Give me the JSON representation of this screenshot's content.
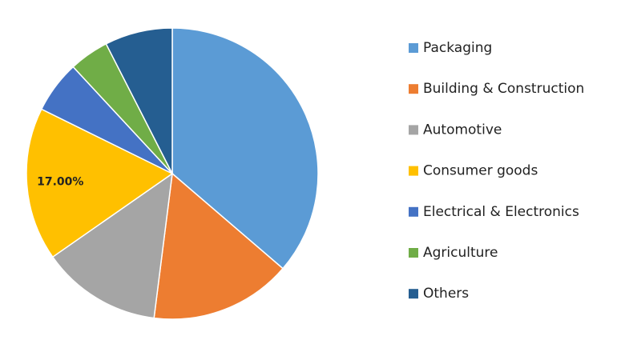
{
  "chart_data": {
    "type": "pie",
    "categories": [
      "Packaging",
      "Building & Construction",
      "Automotive",
      "Consumer goods",
      "Electrical & Electronics",
      "Agriculture",
      "Others"
    ],
    "values": [
      36.3,
      15.7,
      13.3,
      17,
      5.8,
      4.4,
      7.5
    ],
    "value_labels": [
      null,
      null,
      null,
      "17.00%",
      null,
      null,
      null
    ],
    "colors": [
      "#5b9bd5",
      "#ed7d31",
      "#a5a5a5",
      "#ffc000",
      "#4472c4",
      "#70ad47",
      "#255e91"
    ],
    "legend": "right"
  }
}
